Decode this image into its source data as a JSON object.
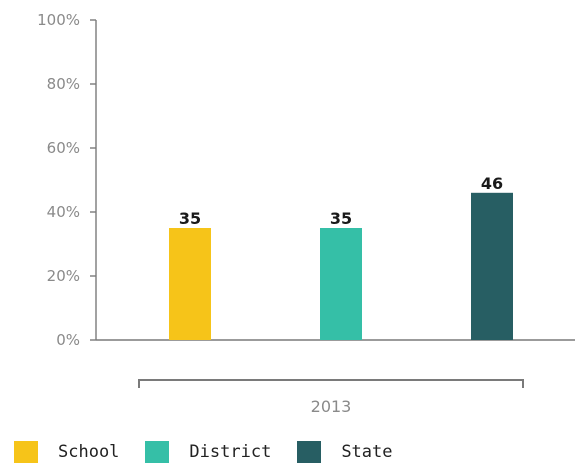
{
  "chart_data": {
    "type": "bar",
    "categories": [
      "2013"
    ],
    "series": [
      {
        "name": "School",
        "values": [
          35
        ],
        "color": "#f6c419"
      },
      {
        "name": "District",
        "values": [
          35
        ],
        "color": "#35bfa7"
      },
      {
        "name": "State",
        "values": [
          46
        ],
        "color": "#275e63"
      }
    ],
    "ylim": [
      0,
      100
    ],
    "yticks": [
      0,
      20,
      40,
      60,
      80,
      100
    ],
    "ytick_labels": [
      "0%",
      "20%",
      "40%",
      "60%",
      "80%",
      "100%"
    ],
    "data_labels": [
      "35",
      "35",
      "46"
    ],
    "title": "",
    "xlabel": "",
    "ylabel": "",
    "grid": false,
    "legend_position": "bottom-left",
    "axis_color": "#7a7a7a"
  }
}
